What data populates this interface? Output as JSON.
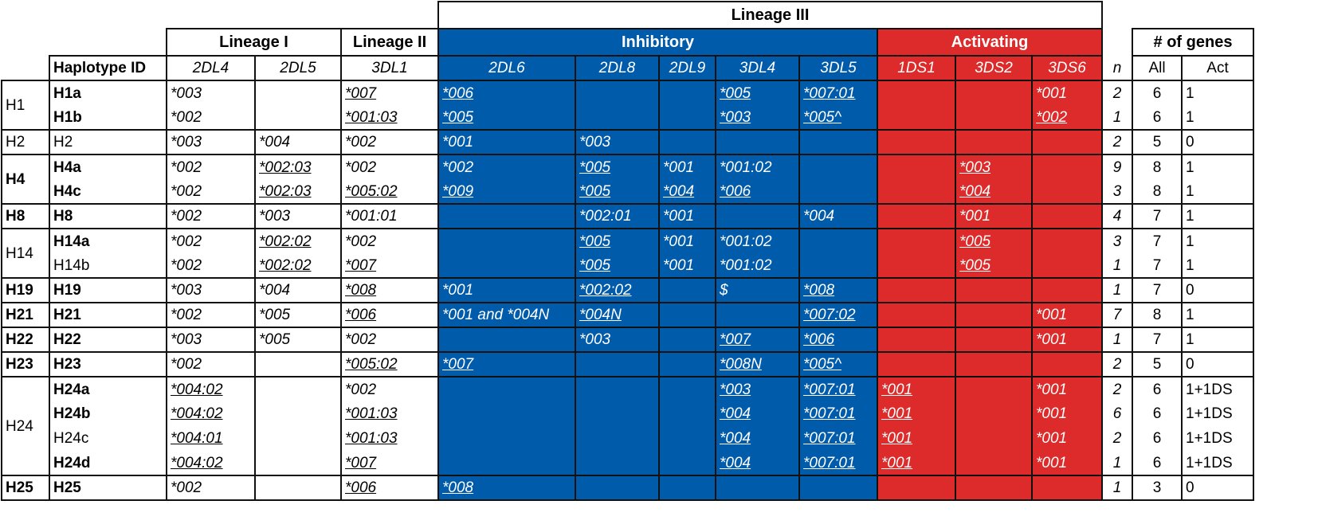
{
  "header": {
    "lineage_iii": "Lineage III",
    "lineage_i": "Lineage I",
    "lineage_ii": "Lineage II",
    "inhibitory": "Inhibitory",
    "activating": "Activating",
    "num_genes": "# of genes",
    "haplotype_id": "Haplotype ID",
    "genes": [
      "2DL4",
      "2DL5",
      "3DL1",
      "2DL6",
      "2DL8",
      "2DL9",
      "3DL4",
      "3DL5",
      "1DS1",
      "3DS2",
      "3DS6"
    ],
    "n": "n",
    "all": "All",
    "act": "Act"
  },
  "groups": [
    {
      "name": "H1",
      "bold": false,
      "rows": [
        {
          "id": "H1a",
          "bold": true,
          "cells": [
            [
              "*003",
              false
            ],
            [
              "",
              false
            ],
            [
              "*007",
              true
            ],
            [
              "*006",
              true
            ],
            [
              "",
              false
            ],
            [
              "",
              false
            ],
            [
              "*005",
              true
            ],
            [
              "*007:01",
              true
            ],
            [
              "",
              false
            ],
            [
              "",
              false
            ],
            [
              "*001",
              false
            ]
          ],
          "n": "2",
          "all": "6",
          "act": "1"
        },
        {
          "id": "H1b",
          "bold": true,
          "cells": [
            [
              "*002",
              false
            ],
            [
              "",
              false
            ],
            [
              "*001:03",
              true
            ],
            [
              "*005",
              true
            ],
            [
              "",
              false
            ],
            [
              "",
              false
            ],
            [
              "*003",
              true
            ],
            [
              "*005^",
              true
            ],
            [
              "",
              false
            ],
            [
              "",
              false
            ],
            [
              "*002",
              true
            ]
          ],
          "n": "1",
          "all": "6",
          "act": "1"
        }
      ]
    },
    {
      "name": "H2",
      "bold": false,
      "rows": [
        {
          "id": "H2",
          "bold": false,
          "cells": [
            [
              "*003",
              false
            ],
            [
              "*004",
              false
            ],
            [
              "*002",
              false
            ],
            [
              "*001",
              false
            ],
            [
              "*003",
              false
            ],
            [
              "",
              false
            ],
            [
              "",
              false
            ],
            [
              "",
              false
            ],
            [
              "",
              false
            ],
            [
              "",
              false
            ],
            [
              "",
              false
            ]
          ],
          "n": "2",
          "all": "5",
          "act": "0"
        }
      ]
    },
    {
      "name": "H4",
      "bold": true,
      "rows": [
        {
          "id": "H4a",
          "bold": true,
          "cells": [
            [
              "*002",
              false
            ],
            [
              "*002:03",
              true
            ],
            [
              "*002",
              false
            ],
            [
              "*002",
              false
            ],
            [
              "*005",
              true
            ],
            [
              "*001",
              false
            ],
            [
              "*001:02",
              false
            ],
            [
              "",
              false
            ],
            [
              "",
              false
            ],
            [
              "*003",
              true
            ],
            [
              "",
              false
            ]
          ],
          "n": "9",
          "all": "8",
          "act": "1"
        },
        {
          "id": "H4c",
          "bold": true,
          "cells": [
            [
              "*002",
              false
            ],
            [
              "*002:03",
              true
            ],
            [
              "*005:02",
              true
            ],
            [
              "*009",
              true
            ],
            [
              "*005",
              true
            ],
            [
              "*004",
              true
            ],
            [
              "*006",
              true
            ],
            [
              "",
              false
            ],
            [
              "",
              false
            ],
            [
              "*004",
              true
            ],
            [
              "",
              false
            ]
          ],
          "n": "3",
          "all": "8",
          "act": "1"
        }
      ]
    },
    {
      "name": "H8",
      "bold": true,
      "rows": [
        {
          "id": "H8",
          "bold": true,
          "cells": [
            [
              "*002",
              false
            ],
            [
              "*003",
              false
            ],
            [
              "*001:01",
              false
            ],
            [
              "",
              false
            ],
            [
              "*002:01",
              false
            ],
            [
              "*001",
              false
            ],
            [
              "",
              false
            ],
            [
              "*004",
              false
            ],
            [
              "",
              false
            ],
            [
              "*001",
              false
            ],
            [
              "",
              false
            ]
          ],
          "n": "4",
          "all": "7",
          "act": "1"
        }
      ]
    },
    {
      "name": "H14",
      "bold": false,
      "rows": [
        {
          "id": "H14a",
          "bold": true,
          "cells": [
            [
              "*002",
              false
            ],
            [
              "*002:02",
              true
            ],
            [
              "*002",
              false
            ],
            [
              "",
              false
            ],
            [
              "*005",
              true
            ],
            [
              "*001",
              false
            ],
            [
              "*001:02",
              false
            ],
            [
              "",
              false
            ],
            [
              "",
              false
            ],
            [
              "*005",
              true
            ],
            [
              "",
              false
            ]
          ],
          "n": "3",
          "all": "7",
          "act": "1"
        },
        {
          "id": "H14b",
          "bold": false,
          "cells": [
            [
              "*002",
              false
            ],
            [
              "*002:02",
              true
            ],
            [
              "*007",
              true
            ],
            [
              "",
              false
            ],
            [
              "*005",
              true
            ],
            [
              "*001",
              false
            ],
            [
              "*001:02",
              false
            ],
            [
              "",
              false
            ],
            [
              "",
              false
            ],
            [
              "*005",
              true
            ],
            [
              "",
              false
            ]
          ],
          "n": "1",
          "all": "7",
          "act": "1"
        }
      ]
    },
    {
      "name": "H19",
      "bold": true,
      "rows": [
        {
          "id": "H19",
          "bold": true,
          "cells": [
            [
              "*003",
              false
            ],
            [
              "*004",
              false
            ],
            [
              "*008",
              true
            ],
            [
              "*001",
              false
            ],
            [
              "*002:02",
              true
            ],
            [
              "",
              false
            ],
            [
              "$",
              false
            ],
            [
              "*008",
              true
            ],
            [
              "",
              false
            ],
            [
              "",
              false
            ],
            [
              "",
              false
            ]
          ],
          "n": "1",
          "all": "7",
          "act": "0"
        }
      ]
    },
    {
      "name": "H21",
      "bold": true,
      "rows": [
        {
          "id": "H21",
          "bold": true,
          "cells": [
            [
              "*002",
              false
            ],
            [
              "*005",
              false
            ],
            [
              "*006",
              true
            ],
            [
              "*001 and *004N",
              false
            ],
            [
              "*004N",
              true
            ],
            [
              "",
              false
            ],
            [
              "",
              false
            ],
            [
              "*007:02",
              true
            ],
            [
              "",
              false
            ],
            [
              "",
              false
            ],
            [
              "*001",
              false
            ]
          ],
          "n": "7",
          "all": "8",
          "act": "1"
        }
      ]
    },
    {
      "name": "H22",
      "bold": true,
      "rows": [
        {
          "id": "H22",
          "bold": true,
          "cells": [
            [
              "*003",
              false
            ],
            [
              "*005",
              false
            ],
            [
              "*002",
              false
            ],
            [
              "",
              false
            ],
            [
              "*003",
              false
            ],
            [
              "",
              false
            ],
            [
              "*007",
              true
            ],
            [
              "*006",
              true
            ],
            [
              "",
              false
            ],
            [
              "",
              false
            ],
            [
              "*001",
              false
            ]
          ],
          "n": "1",
          "all": "7",
          "act": "1"
        }
      ]
    },
    {
      "name": "H23",
      "bold": true,
      "rows": [
        {
          "id": "H23",
          "bold": true,
          "cells": [
            [
              "*002",
              false
            ],
            [
              "",
              false
            ],
            [
              "*005:02",
              true
            ],
            [
              "*007",
              true
            ],
            [
              "",
              false
            ],
            [
              "",
              false
            ],
            [
              "*008N",
              true
            ],
            [
              "*005^",
              true
            ],
            [
              "",
              false
            ],
            [
              "",
              false
            ],
            [
              "",
              false
            ]
          ],
          "n": "2",
          "all": "5",
          "act": "0"
        }
      ]
    },
    {
      "name": "H24",
      "bold": false,
      "rows": [
        {
          "id": "H24a",
          "bold": true,
          "cells": [
            [
              "*004:02",
              true
            ],
            [
              "",
              false
            ],
            [
              "*002",
              false
            ],
            [
              "",
              false
            ],
            [
              "",
              false
            ],
            [
              "",
              false
            ],
            [
              "*003",
              true
            ],
            [
              "*007:01",
              true
            ],
            [
              "*001",
              true
            ],
            [
              "",
              false
            ],
            [
              "*001",
              false
            ]
          ],
          "n": "2",
          "all": "6",
          "act": "1+1DS"
        },
        {
          "id": "H24b",
          "bold": true,
          "cells": [
            [
              "*004:02",
              true
            ],
            [
              "",
              false
            ],
            [
              "*001:03",
              true
            ],
            [
              "",
              false
            ],
            [
              "",
              false
            ],
            [
              "",
              false
            ],
            [
              "*004",
              true
            ],
            [
              "*007:01",
              true
            ],
            [
              "*001",
              true
            ],
            [
              "",
              false
            ],
            [
              "*001",
              false
            ]
          ],
          "n": "6",
          "all": "6",
          "act": "1+1DS"
        },
        {
          "id": "H24c",
          "bold": false,
          "cells": [
            [
              "*004:01",
              true
            ],
            [
              "",
              false
            ],
            [
              "*001:03",
              true
            ],
            [
              "",
              false
            ],
            [
              "",
              false
            ],
            [
              "",
              false
            ],
            [
              "*004",
              true
            ],
            [
              "*007:01",
              true
            ],
            [
              "*001",
              true
            ],
            [
              "",
              false
            ],
            [
              "*001",
              false
            ]
          ],
          "n": "2",
          "all": "6",
          "act": "1+1DS"
        },
        {
          "id": "H24d",
          "bold": true,
          "cells": [
            [
              "*004:02",
              true
            ],
            [
              "",
              false
            ],
            [
              "*007",
              true
            ],
            [
              "",
              false
            ],
            [
              "",
              false
            ],
            [
              "",
              false
            ],
            [
              "*004",
              true
            ],
            [
              "*007:01",
              true
            ],
            [
              "*001",
              true
            ],
            [
              "",
              false
            ],
            [
              "*001",
              false
            ]
          ],
          "n": "1",
          "all": "6",
          "act": "1+1DS"
        }
      ]
    },
    {
      "name": "H25",
      "bold": true,
      "rows": [
        {
          "id": "H25",
          "bold": true,
          "cells": [
            [
              "*002",
              false
            ],
            [
              "",
              false
            ],
            [
              "*006",
              true
            ],
            [
              "*008",
              true
            ],
            [
              "",
              false
            ],
            [
              "",
              false
            ],
            [
              "",
              false
            ],
            [
              "",
              false
            ],
            [
              "",
              false
            ],
            [
              "",
              false
            ],
            [
              "",
              false
            ]
          ],
          "n": "1",
          "all": "3",
          "act": "0"
        }
      ]
    }
  ],
  "colors": {
    "inhibitory": "#005bab",
    "activating": "#dd2a2a"
  }
}
